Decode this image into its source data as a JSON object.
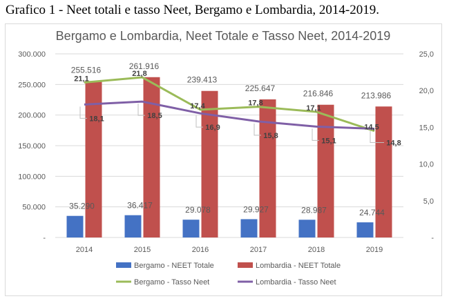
{
  "caption": "Grafico 1 - Neet totali e tasso Neet, Bergamo e Lombardia, 2014-2019.",
  "chart_data": {
    "type": "bar",
    "title": "Bergamo e Lombardia, Neet Totale e Tasso Neet, 2014-2019",
    "categories": [
      "2014",
      "2015",
      "2016",
      "2017",
      "2018",
      "2019"
    ],
    "y_left": {
      "ylim": [
        0,
        300000
      ],
      "ticks": [
        "-",
        "50.000",
        "100.000",
        "150.000",
        "200.000",
        "250.000",
        "300.000"
      ]
    },
    "y_right": {
      "ylim": [
        0,
        25
      ],
      "ticks": [
        "-",
        "5,0",
        "10,0",
        "15,0",
        "20,0",
        "25,0"
      ]
    },
    "grid": true,
    "legend_position": "bottom",
    "series": [
      {
        "name": "Bergamo - NEET Totale",
        "type": "bar",
        "axis": "left",
        "color": "#4472c4",
        "values": [
          35290,
          36417,
          29078,
          29927,
          28987,
          24744
        ],
        "labels": [
          "35.290",
          "36.417",
          "29.078",
          "29.927",
          "28.987",
          "24.744"
        ]
      },
      {
        "name": "Lombardia - NEET Totale",
        "type": "bar",
        "axis": "left",
        "color": "#c0504d",
        "values": [
          255516,
          261916,
          239413,
          225647,
          216846,
          213986
        ],
        "labels": [
          "255.516",
          "261.916",
          "239.413",
          "225.647",
          "216.846",
          "213.986"
        ]
      },
      {
        "name": "Bergamo - Tasso Neet",
        "type": "line",
        "axis": "right",
        "color": "#9bbb59",
        "values": [
          21.1,
          21.8,
          17.4,
          17.8,
          17.1,
          14.5
        ],
        "labels": [
          "21,1",
          "21,8",
          "17,4",
          "17,8",
          "17,1",
          "14,5"
        ]
      },
      {
        "name": "Lombardia - Tasso Neet",
        "type": "line",
        "axis": "right",
        "color": "#7f5fa6",
        "values": [
          18.1,
          18.5,
          16.9,
          15.8,
          15.1,
          14.8
        ],
        "labels": [
          "18,1",
          "18,5",
          "16,9",
          "15,8",
          "15,1",
          "14,8"
        ]
      }
    ]
  }
}
